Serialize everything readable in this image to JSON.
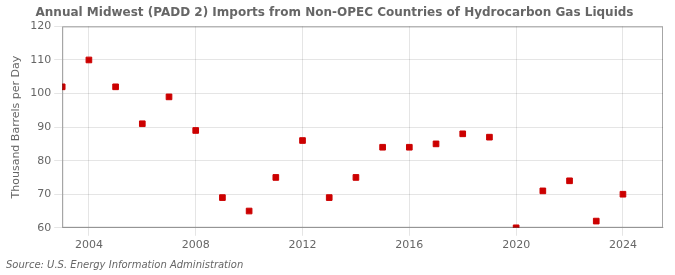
{
  "chart_data": {
    "type": "scatter",
    "title": "Annual Midwest (PADD 2) Imports from Non-OPEC Countries of Hydrocarbon Gas Liquids",
    "ylabel": "Thousand Barrels per Day",
    "annotations": [
      "Source: U.S. Energy Information Administration"
    ],
    "x": [
      2003,
      2004,
      2005,
      2006,
      2007,
      2008,
      2009,
      2010,
      2011,
      2012,
      2013,
      2014,
      2015,
      2016,
      2017,
      2018,
      2019,
      2020,
      2021,
      2022,
      2023,
      2024
    ],
    "values": [
      102,
      110,
      102,
      91,
      99,
      89,
      69,
      65,
      75,
      86,
      69,
      75,
      84,
      84,
      85,
      88,
      87,
      60,
      71,
      74,
      62,
      70
    ],
    "xlim": [
      2003.0,
      2025.5
    ],
    "xticks": [
      2004,
      2008,
      2012,
      2016,
      2020,
      2024
    ],
    "ylim": [
      60,
      120
    ],
    "yticks": [
      60,
      70,
      80,
      90,
      100,
      110,
      120
    ],
    "color": "#cc0000",
    "marker": "square",
    "grid": true
  }
}
